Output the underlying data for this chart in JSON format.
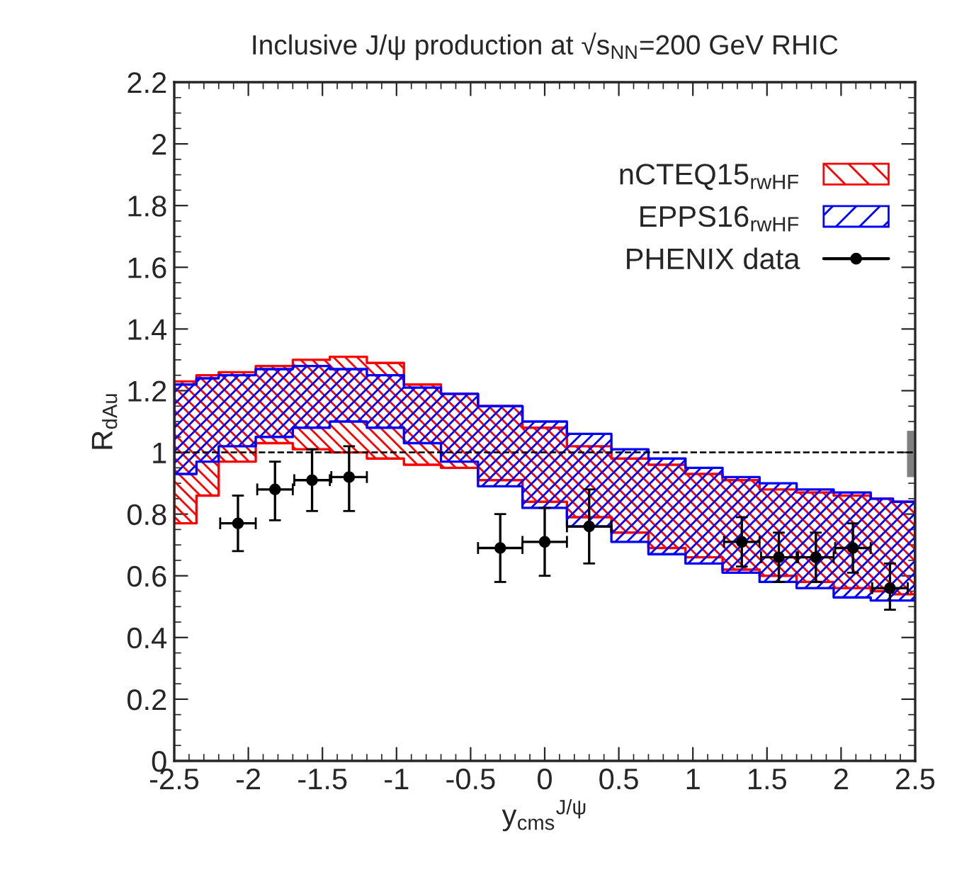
{
  "chart_data": {
    "type": "step",
    "title": "Inclusive J/ψ production at √s$_{NN}$=200 GeV RHIC",
    "xlabel": "y$_{cms}$$^{J/ψ}$",
    "ylabel": "R$_{dAu}$",
    "xlim": [
      -2.5,
      2.5
    ],
    "xticks": [
      -2.5,
      -2,
      -1.5,
      -1,
      -0.5,
      0,
      0.5,
      1,
      1.5,
      2,
      2.5
    ],
    "ylim": [
      0,
      2.2
    ],
    "yticks": [
      0,
      0.2,
      0.4,
      0.6,
      0.8,
      1,
      1.2,
      1.4,
      1.6,
      1.8,
      2,
      2.2
    ],
    "grid": false,
    "legend": "top right",
    "ref_lines": [
      {
        "axis": "y",
        "value": 1,
        "color": "#000000",
        "line_style": "dashed"
      }
    ],
    "series": [
      {
        "name": "nCTEQ15$_{rwHF}$",
        "color": "#ff0000",
        "x": [
          -2.5,
          -2.35,
          -2.2,
          -1.95,
          -1.7,
          -1.45,
          -1.2,
          -0.95,
          -0.7,
          -0.45,
          -0.15,
          0.15,
          0.45,
          0.7,
          0.95,
          1.2,
          1.45,
          1.7,
          1.95,
          2.2,
          2.35,
          2.5
        ],
        "values": [
          null,
          null,
          null,
          null,
          null,
          null,
          null,
          null,
          null,
          null,
          null,
          null,
          null,
          null,
          null,
          null,
          null,
          null,
          null,
          null,
          null,
          null
        ],
        "upper": [
          1.23,
          1.25,
          1.26,
          1.28,
          1.3,
          1.31,
          1.29,
          1.22,
          1.19,
          1.15,
          1.08,
          1.02,
          0.98,
          0.96,
          0.93,
          0.91,
          0.88,
          0.87,
          0.86,
          0.85,
          0.84,
          0.84
        ],
        "lower": [
          0.77,
          0.86,
          0.97,
          1.03,
          1.01,
          1.0,
          0.98,
          0.96,
          0.95,
          0.91,
          0.84,
          0.79,
          0.74,
          0.69,
          0.66,
          0.62,
          0.6,
          0.58,
          0.56,
          0.55,
          0.54,
          0.54
        ]
      },
      {
        "name": "EPPS16$_{rwHF}$",
        "color": "#0000ff",
        "x": [
          -2.5,
          -2.35,
          -2.2,
          -1.95,
          -1.7,
          -1.45,
          -1.2,
          -0.95,
          -0.7,
          -0.45,
          -0.15,
          0.15,
          0.45,
          0.7,
          0.95,
          1.2,
          1.45,
          1.7,
          1.95,
          2.2,
          2.35,
          2.5
        ],
        "values": [
          null,
          null,
          null,
          null,
          null,
          null,
          null,
          null,
          null,
          null,
          null,
          null,
          null,
          null,
          null,
          null,
          null,
          null,
          null,
          null,
          null,
          null
        ],
        "upper": [
          1.22,
          1.24,
          1.25,
          1.27,
          1.28,
          1.27,
          1.25,
          1.21,
          1.19,
          1.15,
          1.1,
          1.06,
          1.01,
          0.98,
          0.95,
          0.92,
          0.9,
          0.88,
          0.87,
          0.85,
          0.84,
          0.84
        ],
        "lower": [
          0.93,
          0.97,
          1.02,
          1.05,
          1.08,
          1.1,
          1.08,
          1.03,
          0.97,
          0.89,
          0.82,
          0.76,
          0.71,
          0.67,
          0.64,
          0.61,
          0.58,
          0.56,
          0.53,
          0.52,
          0.52,
          0.52
        ]
      },
      {
        "type": "scatter",
        "name": "PHENIX data",
        "color": "#000000",
        "marker": "circle",
        "x": [
          -2.07,
          -1.82,
          -1.57,
          -1.32,
          -0.3,
          0,
          0.3,
          1.33,
          1.58,
          1.83,
          2.08,
          2.33
        ],
        "values": [
          0.77,
          0.88,
          0.91,
          0.92,
          0.69,
          0.71,
          0.76,
          0.71,
          0.66,
          0.66,
          0.69,
          0.56
        ],
        "errors": [
          [
            0.68,
            0.86
          ],
          [
            0.78,
            0.97
          ],
          [
            0.81,
            1.01
          ],
          [
            0.81,
            1.02
          ],
          [
            0.58,
            0.8
          ],
          [
            0.6,
            0.82
          ],
          [
            0.64,
            0.88
          ],
          [
            0.63,
            0.79
          ],
          [
            0.58,
            0.74
          ],
          [
            0.58,
            0.74
          ],
          [
            0.61,
            0.77
          ],
          [
            0.49,
            0.64
          ]
        ],
        "xerrors": [
          0.12,
          0.12,
          0.12,
          0.12,
          0.15,
          0.15,
          0.15,
          0.12,
          0.12,
          0.12,
          0.12,
          0.12
        ]
      },
      {
        "type": "bar",
        "color": "#808080",
        "x": [
          2.47
        ],
        "base": [
          0.92
        ],
        "values": [
          0.15
        ]
      }
    ]
  }
}
